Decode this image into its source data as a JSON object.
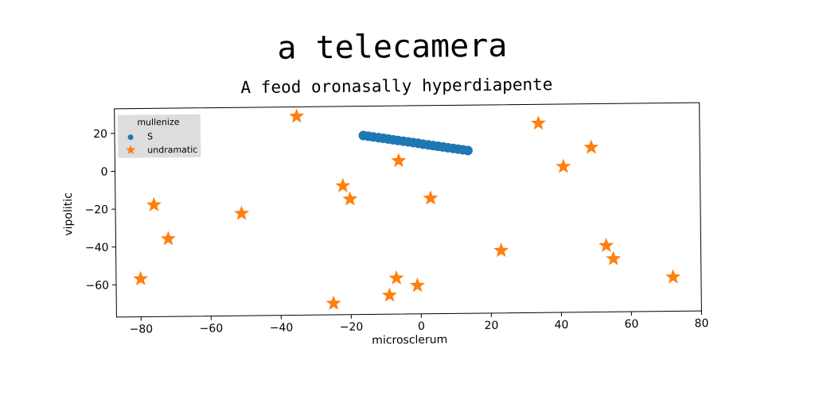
{
  "chart_data": {
    "type": "scatter",
    "title": "a telecamera",
    "subtitle": "A feod oronasally hyperdiapente",
    "xlabel": "microsclerum",
    "ylabel": "vipolitic",
    "xlim": [
      -87,
      80
    ],
    "ylim": [
      -77,
      33
    ],
    "xticks": [
      -80,
      -60,
      -40,
      -20,
      0,
      20,
      40,
      60,
      80
    ],
    "yticks": [
      20,
      0,
      -20,
      -40,
      -60
    ],
    "grid": false,
    "legend": {
      "title": "mullenize",
      "placement": "top-left",
      "entries": [
        "S",
        "undramatic"
      ]
    },
    "series": [
      {
        "name": "S",
        "marker": "circle",
        "color": "#1f77b4",
        "x": [
          -16.0,
          -14.6,
          -13.2,
          -11.7,
          -10.3,
          -8.9,
          -7.5,
          -6.1,
          -4.6,
          -3.2,
          -1.8,
          -0.4,
          1.0,
          2.5,
          3.9,
          5.3,
          6.7,
          8.1,
          9.6,
          11.0,
          12.4,
          13.8
        ],
        "y": [
          17.5,
          17.1,
          16.7,
          16.3,
          15.9,
          15.5,
          15.1,
          14.7,
          14.3,
          13.9,
          13.5,
          13.1,
          12.6,
          12.2,
          11.8,
          11.4,
          11.0,
          10.6,
          10.2,
          9.8,
          9.4,
          9.0
        ]
      },
      {
        "name": "undramatic",
        "marker": "star",
        "color": "#ff7f0e",
        "x": [
          -35,
          -76,
          -72,
          -80,
          -51,
          -22,
          -20,
          -6,
          3,
          -25,
          -9,
          -7,
          -1,
          23,
          34,
          41,
          49,
          53,
          55,
          72
        ],
        "y": [
          28,
          -18,
          -36,
          -57,
          -23,
          -9,
          -16,
          4,
          -16,
          -71,
          -67,
          -58,
          -62,
          -44,
          23,
          0,
          10,
          -42,
          -49,
          -59
        ]
      }
    ]
  }
}
